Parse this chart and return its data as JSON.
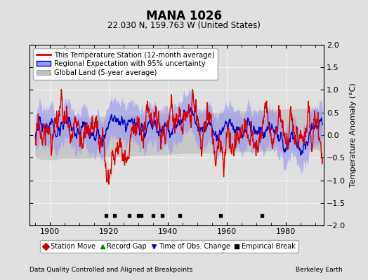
{
  "title": "MANA 1026",
  "subtitle": "22.030 N, 159.763 W (United States)",
  "ylabel": "Temperature Anomaly (°C)",
  "footer_left": "Data Quality Controlled and Aligned at Breakpoints",
  "footer_right": "Berkeley Earth",
  "xlim": [
    1893,
    1993
  ],
  "ylim": [
    -2.0,
    2.0
  ],
  "yticks": [
    -2,
    -1.5,
    -1,
    -0.5,
    0,
    0.5,
    1,
    1.5,
    2
  ],
  "xticks": [
    1900,
    1920,
    1940,
    1960,
    1980
  ],
  "bg_color": "#e0e0e0",
  "plot_bg_color": "#e0e0e0",
  "red_line_color": "#dd0000",
  "blue_line_color": "#0000cc",
  "blue_fill_color": "#9999ee",
  "gray_fill_color": "#c0c0c0",
  "marker_break_x": [
    1919,
    1922,
    1927,
    1930,
    1931,
    1935,
    1938,
    1944,
    1958,
    1972
  ],
  "marker_break_y": -1.78,
  "seed": 17
}
